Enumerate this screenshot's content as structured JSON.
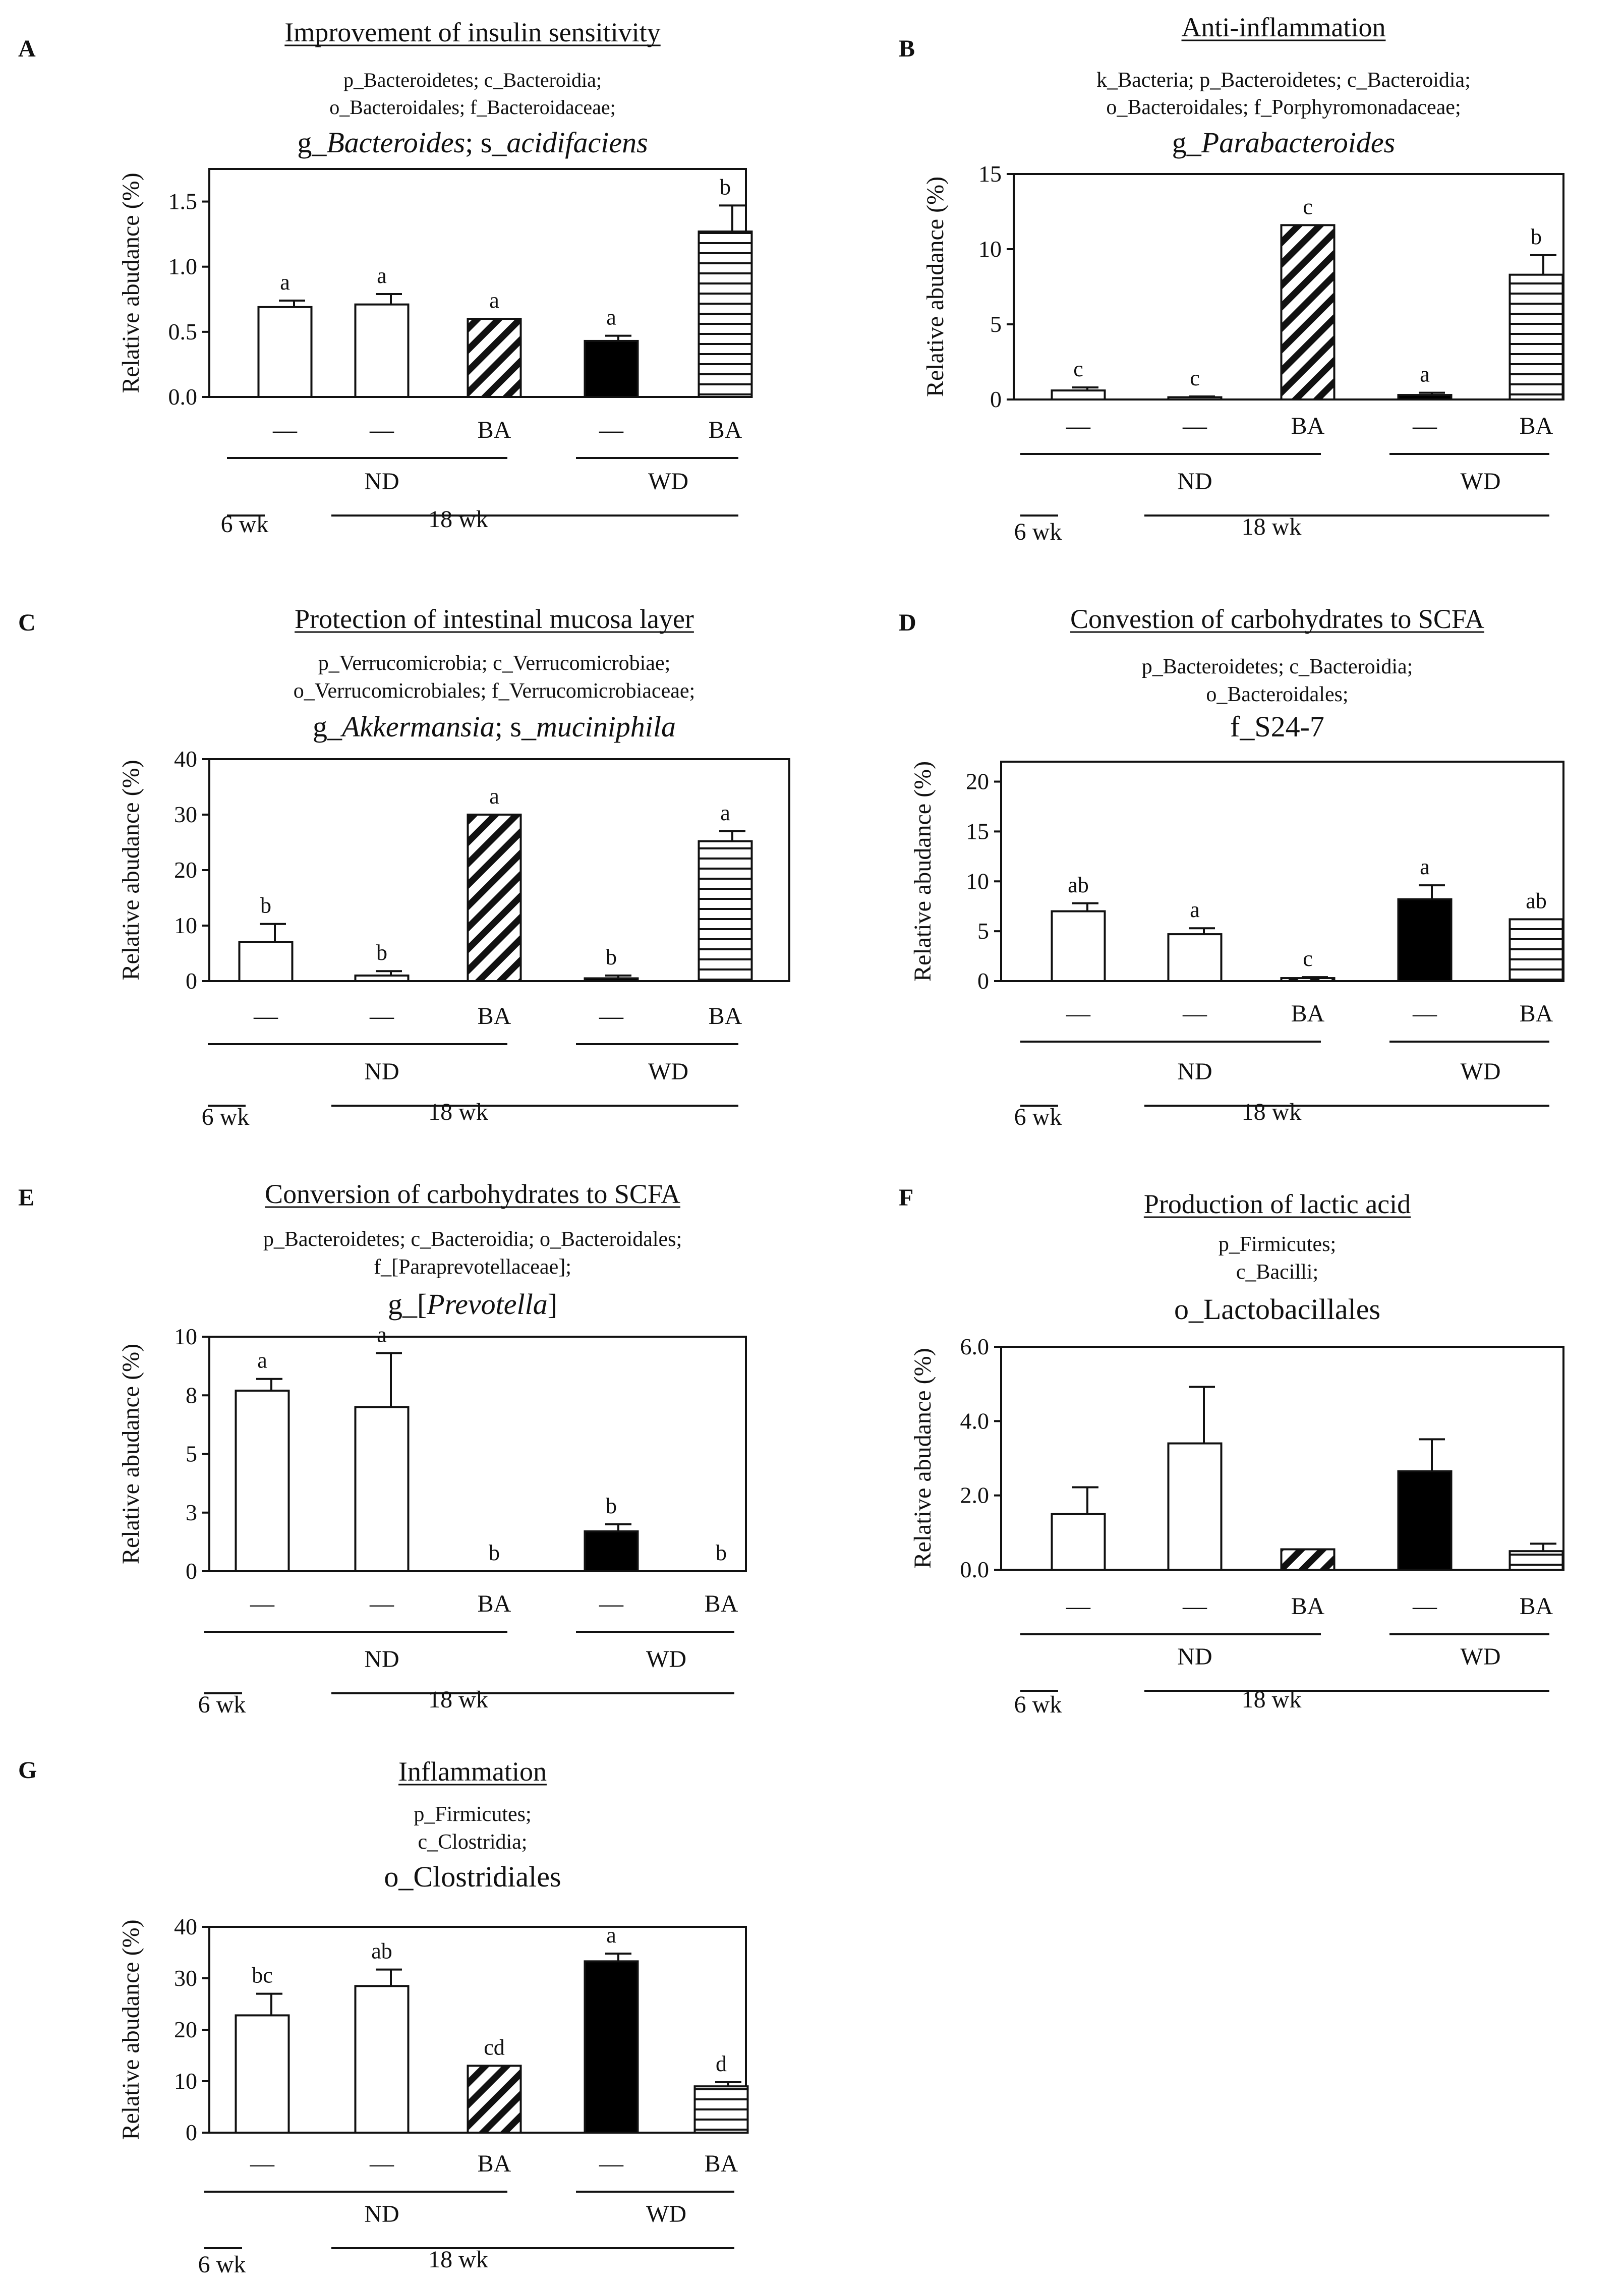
{
  "figure": {
    "y_axis_label": "Relative abudance (%)",
    "groups": {
      "nd": "ND",
      "wd": "WD",
      "week6": "6 wk",
      "week18": "18 wk"
    },
    "colors": {
      "ink": "#111111",
      "bar_fill": "#ffffff",
      "solid": "#000000"
    }
  },
  "chart_data": [
    {
      "panel": "A",
      "type": "bar",
      "title": "Improvement of insulin sensitivity",
      "taxonomy": [
        "p_Bacteroidetes;  c_Bacteroidia;",
        "o_Bacteroidales;  f_Bacteroidaceae;"
      ],
      "taxon_parts": [
        {
          "t": "g_",
          "i": false
        },
        {
          "t": "Bacteroides",
          "i": true
        },
        {
          "t": "; s_",
          "i": false
        },
        {
          "t": "acidifaciens",
          "i": true
        }
      ],
      "ylabel": "Relative abudance (%)",
      "ylim": [
        0,
        1.75
      ],
      "yticks": [
        "0.0",
        "0.5",
        "1.0",
        "1.5"
      ],
      "ytick_values": [
        0,
        0.5,
        1.0,
        1.5
      ],
      "categories": [
        "—",
        "—",
        "BA",
        "—",
        "BA"
      ],
      "patterns": [
        "open",
        "open",
        "hatch",
        "solid",
        "hlines"
      ],
      "values": [
        0.69,
        0.71,
        0.6,
        0.43,
        1.27
      ],
      "errors": [
        0.05,
        0.08,
        0.0,
        0.04,
        0.2
      ],
      "letters": [
        "a",
        "a",
        "a",
        "a",
        "b"
      ]
    },
    {
      "panel": "B",
      "type": "bar",
      "title": "Anti-inflammation",
      "taxonomy": [
        "k_Bacteria;  p_Bacteroidetes;  c_Bacteroidia;",
        "o_Bacteroidales;  f_Porphyromonadaceae;"
      ],
      "taxon_parts": [
        {
          "t": "g_",
          "i": false
        },
        {
          "t": "Parabacteroides",
          "i": true
        }
      ],
      "ylabel": "Relative abudance (%)",
      "ylim": [
        0,
        15
      ],
      "yticks": [
        "0",
        "5",
        "10",
        "15"
      ],
      "ytick_values": [
        0,
        5,
        10,
        15
      ],
      "categories": [
        "—",
        "—",
        "BA",
        "—",
        "BA"
      ],
      "patterns": [
        "open",
        "open",
        "hatch",
        "solid",
        "hlines"
      ],
      "values": [
        0.6,
        0.15,
        11.6,
        0.3,
        8.3
      ],
      "errors": [
        0.2,
        0.05,
        0.0,
        0.15,
        1.3
      ],
      "letters": [
        "c",
        "c",
        "c",
        "a",
        "b"
      ]
    },
    {
      "panel": "C",
      "type": "bar",
      "title": "Protection of intestinal mucosa layer",
      "taxonomy": [
        "p_Verrucomicrobia;  c_Verrucomicrobiae;",
        "o_Verrucomicrobiales;  f_Verrucomicrobiaceae;"
      ],
      "taxon_parts": [
        {
          "t": "g_",
          "i": false
        },
        {
          "t": "Akkermansia",
          "i": true
        },
        {
          "t": "; s_",
          "i": false
        },
        {
          "t": "muciniphila",
          "i": true
        }
      ],
      "ylabel": "Relative abudance (%)",
      "ylim": [
        0,
        40
      ],
      "yticks": [
        "0",
        "10",
        "20",
        "30",
        "40"
      ],
      "ytick_values": [
        0,
        10,
        20,
        30,
        40
      ],
      "categories": [
        "—",
        "—",
        "BA",
        "—",
        "BA"
      ],
      "patterns": [
        "open",
        "open",
        "hatch",
        "solid",
        "hlines"
      ],
      "values": [
        7.0,
        1.0,
        30.0,
        0.5,
        25.2
      ],
      "errors": [
        3.3,
        0.8,
        0.0,
        0.5,
        1.8
      ],
      "letters": [
        "b",
        "b",
        "a",
        "b",
        "a"
      ]
    },
    {
      "panel": "D",
      "type": "bar",
      "title": "Convestion of carbohydrates to SCFA",
      "taxonomy": [
        "p_Bacteroidetes;  c_Bacteroidia;",
        "o_Bacteroidales;"
      ],
      "taxon_parts": [
        {
          "t": "f_S24-7",
          "i": false
        }
      ],
      "ylabel": "Relative abudance (%)",
      "ylim": [
        0,
        22
      ],
      "yticks": [
        "0",
        "5",
        "10",
        "15",
        "20"
      ],
      "ytick_values": [
        0,
        5,
        10,
        15,
        20
      ],
      "categories": [
        "—",
        "—",
        "BA",
        "—",
        "BA"
      ],
      "patterns": [
        "open",
        "open",
        "hatch",
        "solid",
        "hlines"
      ],
      "values": [
        7.0,
        4.7,
        0.3,
        8.2,
        6.2
      ],
      "errors": [
        0.8,
        0.6,
        0.1,
        1.4,
        0.0
      ],
      "letters": [
        "ab",
        "a",
        "c",
        "a",
        "ab"
      ]
    },
    {
      "panel": "E",
      "type": "bar",
      "title": "Conversion of carbohydrates to SCFA",
      "taxonomy": [
        "p_Bacteroidetes;  c_Bacteroidia;  o_Bacteroidales;",
        "f_[Paraprevotellaceae];"
      ],
      "taxon_parts": [
        {
          "t": "g_[",
          "i": false
        },
        {
          "t": "Prevotella",
          "i": true
        },
        {
          "t": "]",
          "i": false
        }
      ],
      "ylabel": "Relative abudance (%)",
      "ylim": [
        0,
        10
      ],
      "yticks": [
        "0",
        "3",
        "5",
        "8",
        "10"
      ],
      "ytick_values": [
        0,
        2.5,
        5,
        7.5,
        10
      ],
      "categories": [
        "—",
        "—",
        "BA",
        "—",
        "BA"
      ],
      "patterns": [
        "open",
        "open",
        "hatch",
        "solid",
        "hlines"
      ],
      "values": [
        7.7,
        7.0,
        0.0,
        1.7,
        0.0
      ],
      "errors": [
        0.5,
        2.3,
        0.0,
        0.3,
        0.0
      ],
      "letters": [
        "a",
        "a",
        "b",
        "b",
        "b"
      ]
    },
    {
      "panel": "F",
      "type": "bar",
      "title": "Production of lactic acid",
      "taxonomy": [
        "p_Firmicutes;",
        "c_Bacilli;"
      ],
      "taxon_parts": [
        {
          "t": "o_Lactobacillales",
          "i": false
        }
      ],
      "ylabel": "Relative abudance (%)",
      "ylim": [
        0,
        6.0
      ],
      "yticks": [
        "0.0",
        "2.0",
        "4.0",
        "6.0"
      ],
      "ytick_values": [
        0,
        2,
        4,
        6
      ],
      "categories": [
        "—",
        "—",
        "BA",
        "—",
        "BA"
      ],
      "patterns": [
        "open",
        "open",
        "hatch",
        "solid",
        "hlines"
      ],
      "values": [
        1.5,
        3.4,
        0.55,
        2.65,
        0.5
      ],
      "errors": [
        0.72,
        1.52,
        0.0,
        0.86,
        0.2
      ],
      "letters": [
        "",
        "",
        "",
        "",
        ""
      ]
    },
    {
      "panel": "G",
      "type": "bar",
      "title": "Inflammation",
      "taxonomy": [
        "p_Firmicutes;",
        "c_Clostridia;"
      ],
      "taxon_parts": [
        {
          "t": "o_Clostridiales",
          "i": false
        }
      ],
      "ylabel": "Relative abudance (%)",
      "ylim": [
        0,
        40
      ],
      "yticks": [
        "0",
        "10",
        "20",
        "30",
        "40"
      ],
      "ytick_values": [
        0,
        10,
        20,
        30,
        40
      ],
      "categories": [
        "—",
        "—",
        "BA",
        "—",
        "BA"
      ],
      "patterns": [
        "open",
        "open",
        "hatch",
        "solid",
        "hlines"
      ],
      "values": [
        22.8,
        28.5,
        13.0,
        33.3,
        9.0
      ],
      "errors": [
        4.2,
        3.2,
        0.0,
        1.5,
        0.8
      ],
      "letters": [
        "bc",
        "ab",
        "cd",
        "a",
        "d"
      ]
    }
  ]
}
